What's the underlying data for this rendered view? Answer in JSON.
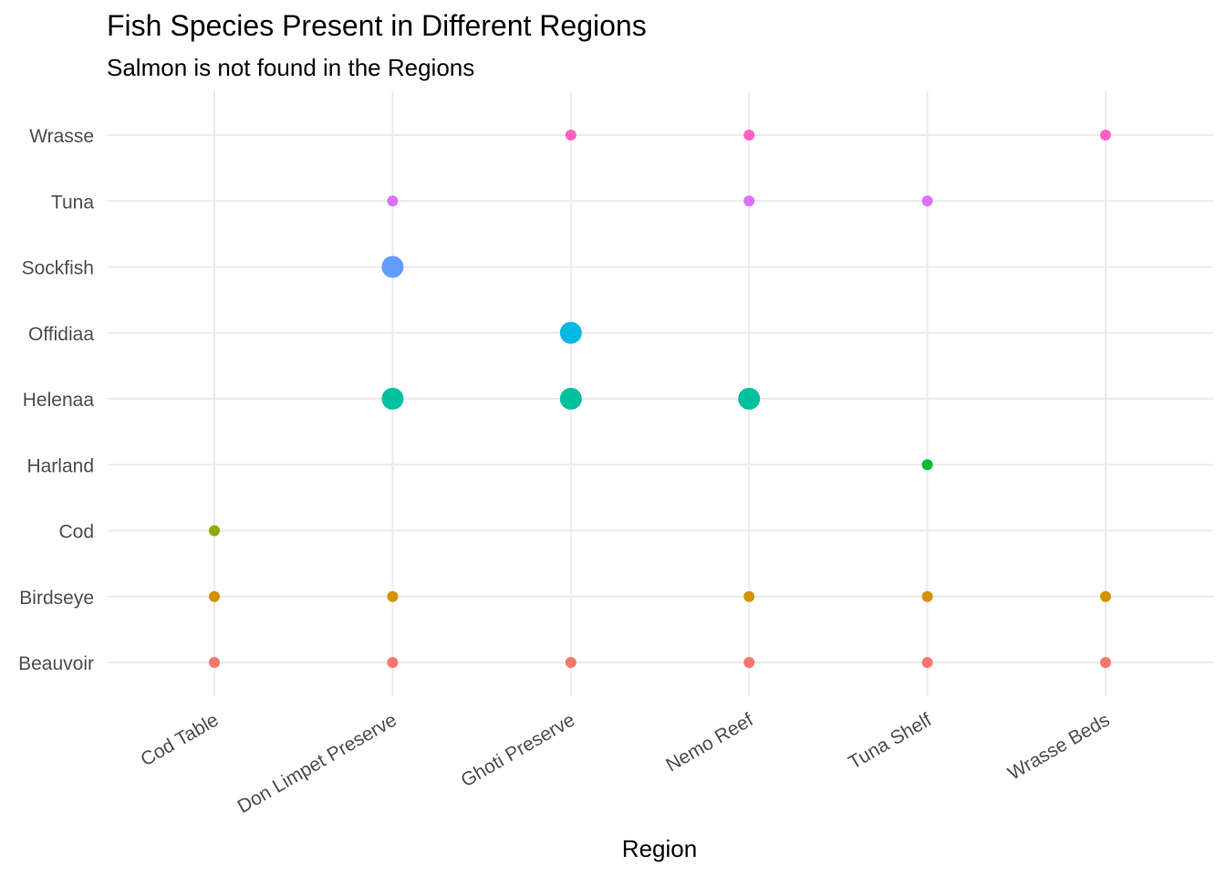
{
  "chart_data": {
    "type": "scatter",
    "title": "Fish Species Present in Different Regions",
    "subtitle": "Salmon is not found in the Regions",
    "xlabel": "Region",
    "ylabel": "",
    "grid": true,
    "legend": "none",
    "categories": [
      "Cod Table",
      "Don Limpet Preserve",
      "Ghoti Preserve",
      "Nemo Reef",
      "Tuna Shelf",
      "Wrasse Beds"
    ],
    "species": [
      "Beauvoir",
      "Birdseye",
      "Cod",
      "Harland",
      "Helenaa",
      "Offidiaa",
      "Sockfish",
      "Tuna",
      "Wrasse"
    ],
    "colors": {
      "Beauvoir": "#F8766D",
      "Birdseye": "#D39200",
      "Cod": "#93AA00",
      "Harland": "#00BA38",
      "Helenaa": "#00C19F",
      "Offidiaa": "#00B9E3",
      "Sockfish": "#619CFF",
      "Tuna": "#DB72FB",
      "Wrasse": "#FF61C3"
    },
    "points": [
      {
        "region": "Cod Table",
        "species": "Beauvoir",
        "size": 1
      },
      {
        "region": "Don Limpet Preserve",
        "species": "Beauvoir",
        "size": 1
      },
      {
        "region": "Ghoti Preserve",
        "species": "Beauvoir",
        "size": 1
      },
      {
        "region": "Nemo Reef",
        "species": "Beauvoir",
        "size": 1
      },
      {
        "region": "Tuna Shelf",
        "species": "Beauvoir",
        "size": 1
      },
      {
        "region": "Wrasse Beds",
        "species": "Beauvoir",
        "size": 1
      },
      {
        "region": "Cod Table",
        "species": "Birdseye",
        "size": 1
      },
      {
        "region": "Don Limpet Preserve",
        "species": "Birdseye",
        "size": 1
      },
      {
        "region": "Nemo Reef",
        "species": "Birdseye",
        "size": 1
      },
      {
        "region": "Tuna Shelf",
        "species": "Birdseye",
        "size": 1
      },
      {
        "region": "Wrasse Beds",
        "species": "Birdseye",
        "size": 1
      },
      {
        "region": "Cod Table",
        "species": "Cod",
        "size": 1
      },
      {
        "region": "Tuna Shelf",
        "species": "Harland",
        "size": 1
      },
      {
        "region": "Don Limpet Preserve",
        "species": "Helenaa",
        "size": 3
      },
      {
        "region": "Ghoti Preserve",
        "species": "Helenaa",
        "size": 3
      },
      {
        "region": "Nemo Reef",
        "species": "Helenaa",
        "size": 3
      },
      {
        "region": "Ghoti Preserve",
        "species": "Offidiaa",
        "size": 3
      },
      {
        "region": "Don Limpet Preserve",
        "species": "Sockfish",
        "size": 3
      },
      {
        "region": "Don Limpet Preserve",
        "species": "Tuna",
        "size": 1
      },
      {
        "region": "Nemo Reef",
        "species": "Tuna",
        "size": 1
      },
      {
        "region": "Tuna Shelf",
        "species": "Tuna",
        "size": 1
      },
      {
        "region": "Ghoti Preserve",
        "species": "Wrasse",
        "size": 1
      },
      {
        "region": "Nemo Reef",
        "species": "Wrasse",
        "size": 1
      },
      {
        "region": "Wrasse Beds",
        "species": "Wrasse",
        "size": 1
      }
    ]
  }
}
